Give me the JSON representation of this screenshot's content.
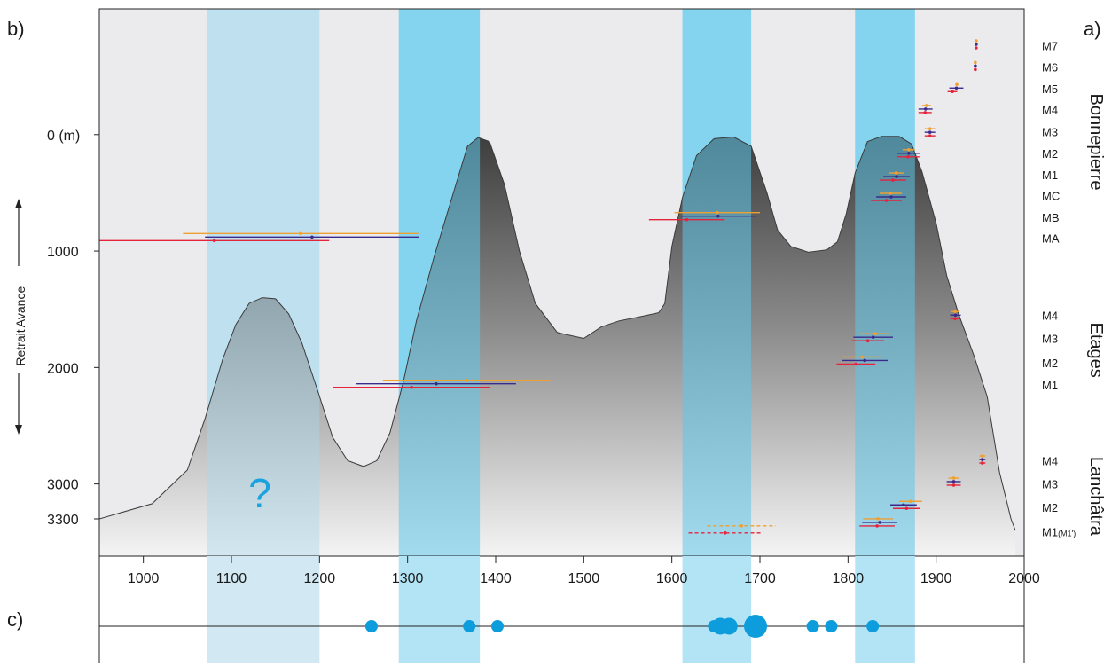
{
  "panels": {
    "a": "a)",
    "b": "b)",
    "c": "c)"
  },
  "chart_data": {
    "type": "area",
    "x_ticks": [
      1000,
      1100,
      1200,
      1300,
      1400,
      1500,
      1600,
      1700,
      1800,
      1900,
      2000
    ],
    "xlim": [
      950,
      2000
    ],
    "y_ticks": [
      {
        "value": 0,
        "label": "0 (m)"
      },
      {
        "value": 1000,
        "label": "1000"
      },
      {
        "value": 2000,
        "label": "2000"
      },
      {
        "value": 3000,
        "label": "3000"
      },
      {
        "value": 3300,
        "label": "3300"
      }
    ],
    "ylim": [
      -1080,
      3620
    ],
    "y_axis_label": {
      "retrait": "Retrait",
      "avance": "Avance"
    },
    "question_mark": "?",
    "glacier_curve": [
      [
        950,
        3300
      ],
      [
        1010,
        3170
      ],
      [
        1050,
        2880
      ],
      [
        1070,
        2440
      ],
      [
        1090,
        1930
      ],
      [
        1105,
        1630
      ],
      [
        1120,
        1450
      ],
      [
        1135,
        1400
      ],
      [
        1150,
        1410
      ],
      [
        1165,
        1540
      ],
      [
        1180,
        1790
      ],
      [
        1198,
        2200
      ],
      [
        1215,
        2600
      ],
      [
        1232,
        2800
      ],
      [
        1250,
        2850
      ],
      [
        1265,
        2800
      ],
      [
        1280,
        2560
      ],
      [
        1295,
        2130
      ],
      [
        1310,
        1600
      ],
      [
        1330,
        1050
      ],
      [
        1352,
        500
      ],
      [
        1368,
        100
      ],
      [
        1380,
        25
      ],
      [
        1393,
        60
      ],
      [
        1410,
        430
      ],
      [
        1427,
        1000
      ],
      [
        1445,
        1450
      ],
      [
        1470,
        1700
      ],
      [
        1500,
        1750
      ],
      [
        1520,
        1650
      ],
      [
        1540,
        1600
      ],
      [
        1560,
        1570
      ],
      [
        1585,
        1530
      ],
      [
        1592,
        1450
      ],
      [
        1600,
        960
      ],
      [
        1612,
        540
      ],
      [
        1628,
        180
      ],
      [
        1648,
        35
      ],
      [
        1670,
        20
      ],
      [
        1690,
        100
      ],
      [
        1708,
        500
      ],
      [
        1720,
        820
      ],
      [
        1735,
        960
      ],
      [
        1755,
        1010
      ],
      [
        1776,
        990
      ],
      [
        1788,
        920
      ],
      [
        1798,
        680
      ],
      [
        1808,
        330
      ],
      [
        1822,
        60
      ],
      [
        1838,
        15
      ],
      [
        1858,
        15
      ],
      [
        1872,
        80
      ],
      [
        1884,
        320
      ],
      [
        1900,
        760
      ],
      [
        1912,
        1210
      ],
      [
        1926,
        1550
      ],
      [
        1943,
        1900
      ],
      [
        1958,
        2250
      ],
      [
        1972,
        2900
      ],
      [
        1985,
        3300
      ],
      [
        1990,
        3400
      ]
    ],
    "highlight_bands": [
      {
        "x0": 1072,
        "x1": 1200,
        "style": "faint"
      },
      {
        "x0": 1290,
        "x1": 1382,
        "style": "strong"
      },
      {
        "x0": 1612,
        "x1": 1690,
        "style": "strong"
      },
      {
        "x0": 1808,
        "x1": 1876,
        "style": "strong"
      }
    ],
    "groups": [
      {
        "name": "Bonnepierre",
        "moraines": [
          {
            "label": "M7",
            "y": -765
          },
          {
            "label": "M6",
            "y": -580
          },
          {
            "label": "M5",
            "y": -395
          },
          {
            "label": "M4",
            "y": -215
          },
          {
            "label": "M3",
            "y": -25
          },
          {
            "label": "M2",
            "y": 160
          },
          {
            "label": "M1",
            "y": 345
          },
          {
            "label": "MC",
            "y": 525
          },
          {
            "label": "MB",
            "y": 710
          },
          {
            "label": "MA",
            "y": 890
          }
        ]
      },
      {
        "name": "Etages",
        "moraines": [
          {
            "label": "M4",
            "y": 1550
          },
          {
            "label": "M3",
            "y": 1750
          },
          {
            "label": "M2",
            "y": 1960
          },
          {
            "label": "M1",
            "y": 2150
          }
        ]
      },
      {
        "name": "Lanchâtra",
        "moraines": [
          {
            "label": "M4",
            "y": 2800
          },
          {
            "label": "M3",
            "y": 3000
          },
          {
            "label": "M2",
            "y": 3200
          },
          {
            "label": "M1",
            "y": 3410,
            "note": "(M1')"
          }
        ]
      }
    ],
    "series_colors": {
      "orange": "#f0a030",
      "purple": "#3a2a8c",
      "red": "#e5243b"
    },
    "dated_moraines": [
      {
        "y": -775,
        "orange": [
          1944,
          1944
        ],
        "purple": [
          1944,
          1944
        ],
        "red": [
          1944,
          1944
        ]
      },
      {
        "y": -590,
        "orange": [
          1943,
          1943
        ],
        "purple": [
          1943,
          1943
        ],
        "red": [
          1943,
          1943
        ]
      },
      {
        "y": -400,
        "orange": [
          1922,
          1922
        ],
        "purple": [
          1915,
          1931
        ],
        "red": [
          1913,
          1924
        ]
      },
      {
        "y": -220,
        "orange": [
          1884,
          1894
        ],
        "purple": [
          1880,
          1896
        ],
        "red": [
          1880,
          1895
        ]
      },
      {
        "y": -20,
        "orange": [
          1887,
          1899
        ],
        "purple": [
          1887,
          1899
        ],
        "red": [
          1887,
          1899
        ]
      },
      {
        "y": 160,
        "orange": [
          1862,
          1876
        ],
        "purple": [
          1856,
          1882
        ],
        "red": [
          1855,
          1881
        ]
      },
      {
        "y": 360,
        "orange": [
          1846,
          1863
        ],
        "purple": [
          1840,
          1870
        ],
        "red": [
          1836,
          1866
        ]
      },
      {
        "y": 535,
        "orange": [
          1836,
          1861
        ],
        "purple": [
          1832,
          1866
        ],
        "red": [
          1826,
          1861
        ]
      },
      {
        "y": 700,
        "orange": [
          1603,
          1700
        ],
        "purple": [
          1610,
          1695
        ],
        "red": [
          1574,
          1660
        ]
      },
      {
        "y": 880,
        "orange": [
          1045,
          1312
        ],
        "purple": [
          1070,
          1313
        ],
        "red": [
          950,
          1211
        ]
      },
      {
        "y": 1550,
        "orange": [
          1917,
          1926
        ],
        "purple": [
          1916,
          1928
        ],
        "red": [
          1916,
          1927
        ]
      },
      {
        "y": 1740,
        "orange": [
          1814,
          1848
        ],
        "purple": [
          1806,
          1851
        ],
        "red": [
          1804,
          1841
        ]
      },
      {
        "y": 1940,
        "orange": [
          1794,
          1838
        ],
        "purple": [
          1793,
          1845
        ],
        "red": [
          1787,
          1831
        ]
      },
      {
        "y": 2140,
        "orange": [
          1272,
          1462
        ],
        "purple": [
          1242,
          1423
        ],
        "red": [
          1215,
          1394
        ]
      },
      {
        "y": 2790,
        "orange": [
          1949,
          1956
        ],
        "purple": [
          1949,
          1956
        ],
        "red": [
          1949,
          1956
        ]
      },
      {
        "y": 2980,
        "orange": [
          1914,
          1926
        ],
        "purple": [
          1912,
          1928
        ],
        "red": [
          1912,
          1928
        ]
      },
      {
        "y": 3180,
        "orange": [
          1858,
          1884
        ],
        "purple": [
          1848,
          1878
        ],
        "red": [
          1851,
          1882
        ]
      },
      {
        "y": 3330,
        "orange": [
          1817,
          1851
        ],
        "purple": [
          1816,
          1856
        ],
        "red": [
          1813,
          1853
        ]
      },
      {
        "y": 3390,
        "orange": [
          1640,
          1718
        ],
        "red": [
          1619,
          1702
        ],
        "dashed": true
      }
    ],
    "timeline_events": [
      {
        "x": 1259,
        "size": "small"
      },
      {
        "x": 1370,
        "size": "small"
      },
      {
        "x": 1402,
        "size": "small"
      },
      {
        "x": 1648,
        "size": "small"
      },
      {
        "x": 1655,
        "size": "medium"
      },
      {
        "x": 1665,
        "size": "medium"
      },
      {
        "x": 1695,
        "size": "large"
      },
      {
        "x": 1760,
        "size": "small"
      },
      {
        "x": 1781,
        "size": "small"
      },
      {
        "x": 1828,
        "size": "small"
      }
    ]
  }
}
